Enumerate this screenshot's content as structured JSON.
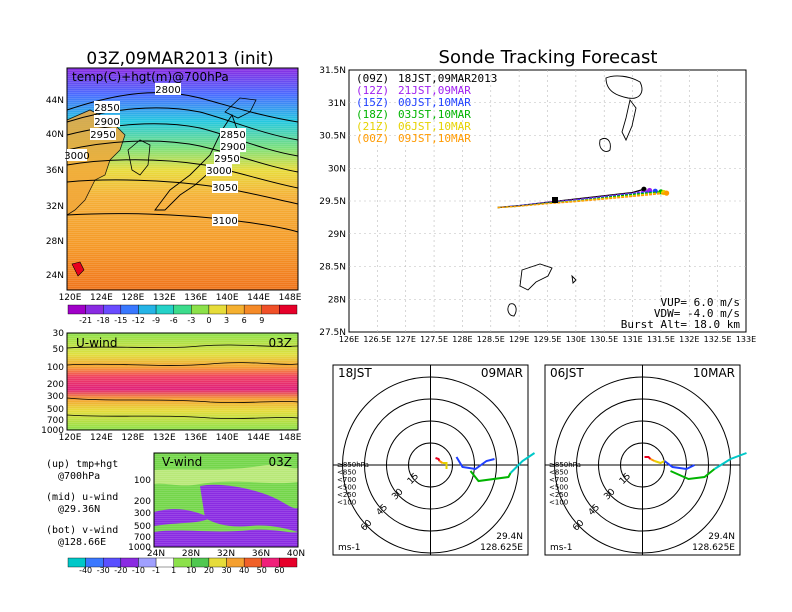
{
  "colors": {
    "purple": "#a020f0",
    "blue": "#1f3fff",
    "green": "#00b400",
    "yellow": "#e6d200",
    "orange": "#ff9a00",
    "red": "#e8001e",
    "magenta": "#e0007a",
    "cyan": "#00c8c8"
  },
  "map_panel": {
    "title": "03Z,09MAR2013 (init)",
    "subtitle": "temp(C)+hgt(m)@700hPa",
    "lat_labels": [
      "44N",
      "40N",
      "36N",
      "32N",
      "28N",
      "24N"
    ],
    "lon_labels": [
      "120E",
      "124E",
      "128E",
      "132E",
      "136E",
      "140E",
      "144E",
      "148E"
    ],
    "contour_labels": [
      "2800",
      "2850",
      "2900",
      "2950",
      "3000",
      "2850",
      "2900",
      "2950",
      "3000",
      "3050",
      "3100"
    ]
  },
  "temp_colorbar": {
    "labels": [
      "-21",
      "-18",
      "-15",
      "-12",
      "-9",
      "-6",
      "-3",
      "0",
      "3",
      "6",
      "9"
    ]
  },
  "u_panel": {
    "title": "U-wind",
    "time": "03Z",
    "y_labels": [
      "30",
      "50",
      "100",
      "200",
      "300",
      "500",
      "700",
      "1000"
    ],
    "x_labels": [
      "120E",
      "124E",
      "128E",
      "132E",
      "136E",
      "140E",
      "144E",
      "148E"
    ]
  },
  "v_panel": {
    "title": "V-wind",
    "time": "03Z",
    "y_labels": [
      "100",
      "200",
      "300",
      "500",
      "700",
      "1000"
    ],
    "x_labels": [
      "24N",
      "28N",
      "32N",
      "36N",
      "40N"
    ]
  },
  "wind_colorbar": {
    "labels": [
      "-40",
      "-30",
      "-20",
      "-10",
      "-1",
      "1",
      "10",
      "20",
      "30",
      "40",
      "50",
      "60"
    ]
  },
  "notes": {
    "up": [
      "(up) tmp+hgt",
      "@700hPa"
    ],
    "mid": [
      "(mid) u-wind",
      "@29.36N"
    ],
    "bot": [
      "(bot) v-wind",
      "@128.66E"
    ]
  },
  "tracking": {
    "title": "Sonde Tracking Forecast",
    "legend": [
      {
        "code": "(09Z)",
        "label": "18JST,09MAR2013",
        "color": "#000000"
      },
      {
        "code": "(12Z)",
        "label": "21JST,09MAR",
        "color": "#a020f0"
      },
      {
        "code": "(15Z)",
        "label": "00JST,10MAR",
        "color": "#1f3fff"
      },
      {
        "code": "(18Z)",
        "label": "03JST,10MAR",
        "color": "#00b400"
      },
      {
        "code": "(21Z)",
        "label": "06JST,10MAR",
        "color": "#e6d200"
      },
      {
        "code": "(00Z)",
        "label": "09JST,10MAR",
        "color": "#ff9a00"
      }
    ],
    "y_labels": [
      "31.5N",
      "31N",
      "30.5N",
      "30N",
      "29.5N",
      "29N",
      "28.5N",
      "28N",
      "27.5N"
    ],
    "x_labels": [
      "126E",
      "126.5E",
      "127E",
      "127.5E",
      "128E",
      "128.5E",
      "129E",
      "129.5E",
      "130E",
      "130.5E",
      "131E",
      "131.5E",
      "132E",
      "132.5E",
      "133E"
    ],
    "params": [
      "VUP=  6.0  m/s",
      "VDW= -4.0  m/s",
      "Burst Alt=  18.0  km"
    ]
  },
  "chart_data": [
    {
      "type": "line",
      "title": "Sonde Tracking Forecast",
      "xlim": [
        126,
        133
      ],
      "ylim": [
        27.5,
        31.5
      ],
      "series": [
        {
          "name": "18JST,09MAR2013",
          "x": [
            128.62,
            129.0,
            129.5,
            130.0,
            130.5,
            131.0,
            131.2
          ],
          "y": [
            29.4,
            29.43,
            29.48,
            29.53,
            29.58,
            29.63,
            29.68
          ]
        },
        {
          "name": "21JST,09MAR",
          "x": [
            128.62,
            129.0,
            129.5,
            130.0,
            130.5,
            131.0,
            131.3
          ],
          "y": [
            29.4,
            29.43,
            29.48,
            29.52,
            29.57,
            29.62,
            29.66
          ]
        },
        {
          "name": "00JST,10MAR",
          "x": [
            128.62,
            129.0,
            129.5,
            130.0,
            130.5,
            131.0,
            131.4
          ],
          "y": [
            29.4,
            29.43,
            29.47,
            29.51,
            29.56,
            29.61,
            29.65
          ]
        },
        {
          "name": "03JST,10MAR",
          "x": [
            128.62,
            129.0,
            129.5,
            130.0,
            130.5,
            131.0,
            131.5
          ],
          "y": [
            29.4,
            29.42,
            29.47,
            29.5,
            29.55,
            29.6,
            29.64
          ]
        },
        {
          "name": "06JST,10MAR",
          "x": [
            128.62,
            129.0,
            129.5,
            130.0,
            130.5,
            131.0,
            131.55
          ],
          "y": [
            29.4,
            29.42,
            29.46,
            29.5,
            29.54,
            29.58,
            29.63
          ]
        },
        {
          "name": "09JST,10MAR",
          "x": [
            128.62,
            129.0,
            129.5,
            130.0,
            130.5,
            131.0,
            131.6
          ],
          "y": [
            29.4,
            29.42,
            29.46,
            29.49,
            29.53,
            29.57,
            29.62
          ]
        }
      ]
    }
  ],
  "polar_left": {
    "time": "18JST",
    "date": "09MAR",
    "rings": [
      "15",
      "30",
      "45",
      "60"
    ],
    "levels": [
      "≥850hPa",
      "<850",
      "<700",
      "<500",
      "<250",
      "<100"
    ],
    "unit": "ms-1",
    "lat": "29.4N",
    "lon": "128.625E"
  },
  "polar_right": {
    "time": "06JST",
    "date": "10MAR",
    "rings": [
      "15",
      "30",
      "45",
      "60"
    ],
    "levels": [
      "≥850hPa",
      "<850",
      "<700",
      "<500",
      "<250",
      "<100"
    ],
    "unit": "ms-1",
    "lat": "29.4N",
    "lon": "128.625E"
  }
}
